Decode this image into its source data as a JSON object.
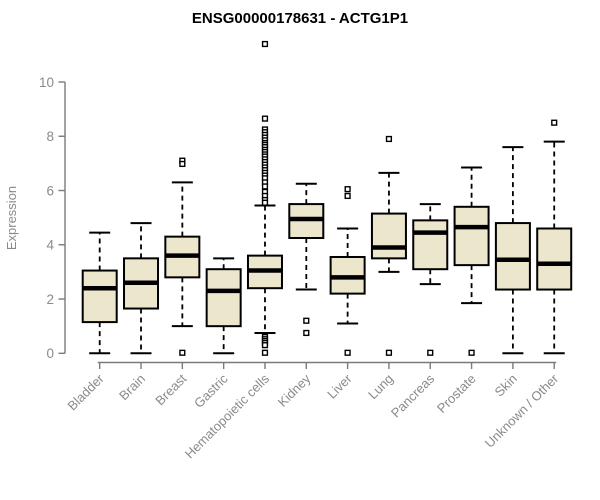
{
  "chart_data": {
    "type": "boxplot",
    "title": "ENSG00000178631 - ACTG1P1",
    "ylabel": "Expression",
    "xlabel": "",
    "ylim": [
      0,
      10
    ],
    "yticks": [
      0,
      2,
      4,
      6,
      8,
      10
    ],
    "grid": false,
    "legend": "none",
    "categories": [
      "Bladder",
      "Brain",
      "Breast",
      "Gastric",
      "Hematopoietic cells",
      "Kidney",
      "Liver",
      "Lung",
      "Pancreas",
      "Prostate",
      "Skin",
      "Unknown / Other"
    ],
    "series": [
      {
        "category": "Bladder",
        "whisker_low": 0,
        "q1": 1.15,
        "median": 2.4,
        "q3": 3.05,
        "whisker_high": 4.45,
        "outliers": []
      },
      {
        "category": "Brain",
        "whisker_low": 0,
        "q1": 1.65,
        "median": 2.6,
        "q3": 3.5,
        "whisker_high": 4.8,
        "outliers": []
      },
      {
        "category": "Breast",
        "whisker_low": 1.0,
        "q1": 2.8,
        "median": 3.6,
        "q3": 4.3,
        "whisker_high": 6.3,
        "outliers": [
          7.1,
          6.98,
          0.02
        ]
      },
      {
        "category": "Gastric",
        "whisker_low": 0,
        "q1": 1.0,
        "median": 2.3,
        "q3": 3.1,
        "whisker_high": 3.5,
        "outliers": []
      },
      {
        "category": "Hematopoietic cells",
        "whisker_low": 0.75,
        "q1": 2.4,
        "median": 3.05,
        "q3": 3.6,
        "whisker_high": 5.45,
        "outliers": [
          11.4,
          8.65,
          8.25,
          8.15,
          8.05,
          7.95,
          7.85,
          7.75,
          7.68,
          7.6,
          7.5,
          7.42,
          7.33,
          7.25,
          7.15,
          7.05,
          6.95,
          6.85,
          6.75,
          6.65,
          6.55,
          6.45,
          6.3,
          6.15,
          5.95,
          5.8,
          5.65,
          5.55,
          0.6,
          0.52,
          0.45,
          0.38,
          0.3,
          0.02
        ]
      },
      {
        "category": "Kidney",
        "whisker_low": 2.35,
        "q1": 4.25,
        "median": 4.95,
        "q3": 5.5,
        "whisker_high": 6.25,
        "outliers": [
          1.2,
          0.75
        ]
      },
      {
        "category": "Liver",
        "whisker_low": 1.1,
        "q1": 2.2,
        "median": 2.8,
        "q3": 3.55,
        "whisker_high": 4.6,
        "outliers": [
          6.05,
          5.8,
          0.02
        ]
      },
      {
        "category": "Lung",
        "whisker_low": 3.0,
        "q1": 3.5,
        "median": 3.9,
        "q3": 5.15,
        "whisker_high": 6.65,
        "outliers": [
          7.9,
          0.02
        ]
      },
      {
        "category": "Pancreas",
        "whisker_low": 2.55,
        "q1": 3.1,
        "median": 4.45,
        "q3": 4.9,
        "whisker_high": 5.5,
        "outliers": [
          0.02
        ]
      },
      {
        "category": "Prostate",
        "whisker_low": 1.85,
        "q1": 3.25,
        "median": 4.65,
        "q3": 5.4,
        "whisker_high": 6.85,
        "outliers": [
          0.02
        ]
      },
      {
        "category": "Skin",
        "whisker_low": 0,
        "q1": 2.35,
        "median": 3.45,
        "q3": 4.8,
        "whisker_high": 7.6,
        "outliers": []
      },
      {
        "category": "Unknown / Other",
        "whisker_low": 0,
        "q1": 2.35,
        "median": 3.3,
        "q3": 4.6,
        "whisker_high": 7.8,
        "outliers": [
          8.5
        ]
      }
    ],
    "colors": {
      "box_fill": "#ece6cc",
      "box_stroke": "#000000",
      "median": "#000000",
      "axis": "#7a7a7a",
      "tick_label": "#8a8a8a",
      "title": "#000000",
      "outlier_fill": "#ffffff",
      "background": "#ffffff"
    }
  }
}
